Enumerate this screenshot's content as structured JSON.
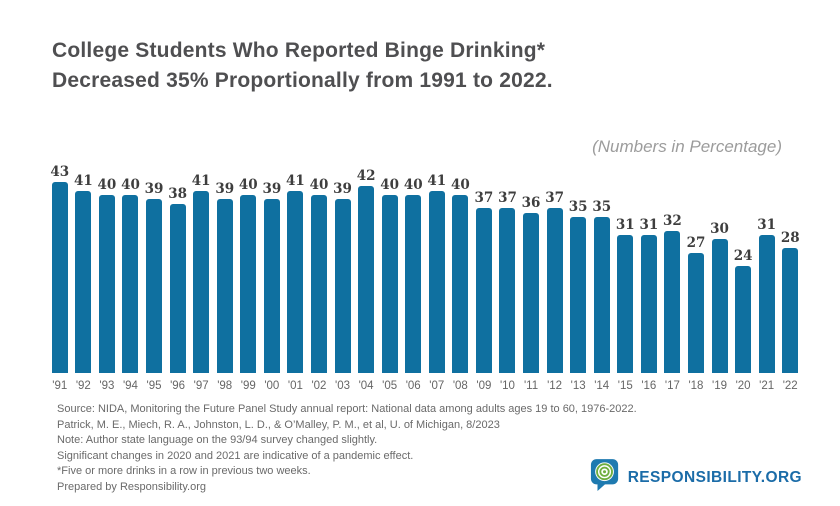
{
  "title": {
    "line1": "College Students Who Reported Binge Drinking*",
    "line2": "Decreased 35% Proportionally from 1991 to 2022."
  },
  "subtitle": "(Numbers in Percentage)",
  "chart_data": {
    "type": "bar",
    "title": "College Students Who Reported Binge Drinking* Decreased 35% Proportionally from 1991 to 2022.",
    "subtitle": "(Numbers in Percentage)",
    "categories": [
      "'91",
      "'92",
      "'93",
      "'94",
      "'95",
      "'96",
      "'97",
      "'98",
      "'99",
      "'00",
      "'01",
      "'02",
      "'03",
      "'04",
      "'05",
      "'06",
      "'07",
      "'08",
      "'09",
      "'10",
      "'11",
      "'12",
      "'13",
      "'14",
      "'15",
      "'16",
      "'17",
      "'18",
      "'19",
      "'20",
      "'21",
      "'22"
    ],
    "values": [
      43,
      41,
      40,
      40,
      39,
      38,
      41,
      39,
      40,
      39,
      41,
      40,
      39,
      42,
      40,
      40,
      41,
      40,
      37,
      37,
      36,
      37,
      35,
      35,
      31,
      31,
      32,
      27,
      30,
      24,
      31,
      28
    ],
    "xlabel": "",
    "ylabel": "",
    "ylim": [
      0,
      45
    ],
    "units": "percent",
    "grid": false,
    "legend": "none",
    "data_labels": true,
    "bar_color": "#0F70A0"
  },
  "footer": {
    "lines": [
      "Source: NIDA, Monitoring the Future Panel Study annual report: National data among adults ages 19 to 60, 1976-2022.",
      "Patrick, M. E., Miech, R. A., Johnston, L. D., & O’Malley, P. M., et al, U. of Michigan, 8/2023",
      "Note: Author state language on the 93/94 survey changed slightly.",
      "Significant changes in 2020 and 2021 are indicative of a pandemic effect.",
      "*Five or more drinks in a row in previous two weeks.",
      "Prepared by Responsibility.org"
    ]
  },
  "logo": {
    "text": "RESPONSIBILITY.ORG",
    "icon": "speech-bubble-target-icon",
    "text_color": "#1b6ca8",
    "bubble_color": "#1e7ab0",
    "ring_color": "#6fae3f"
  },
  "colors": {
    "background": "#ffffff",
    "title_text": "#4f4f51",
    "value_labels": "#3e3e3e",
    "axis_labels": "#666666",
    "footer_text": "#6a6a6a",
    "subtitle_text": "#9c9c9c"
  }
}
